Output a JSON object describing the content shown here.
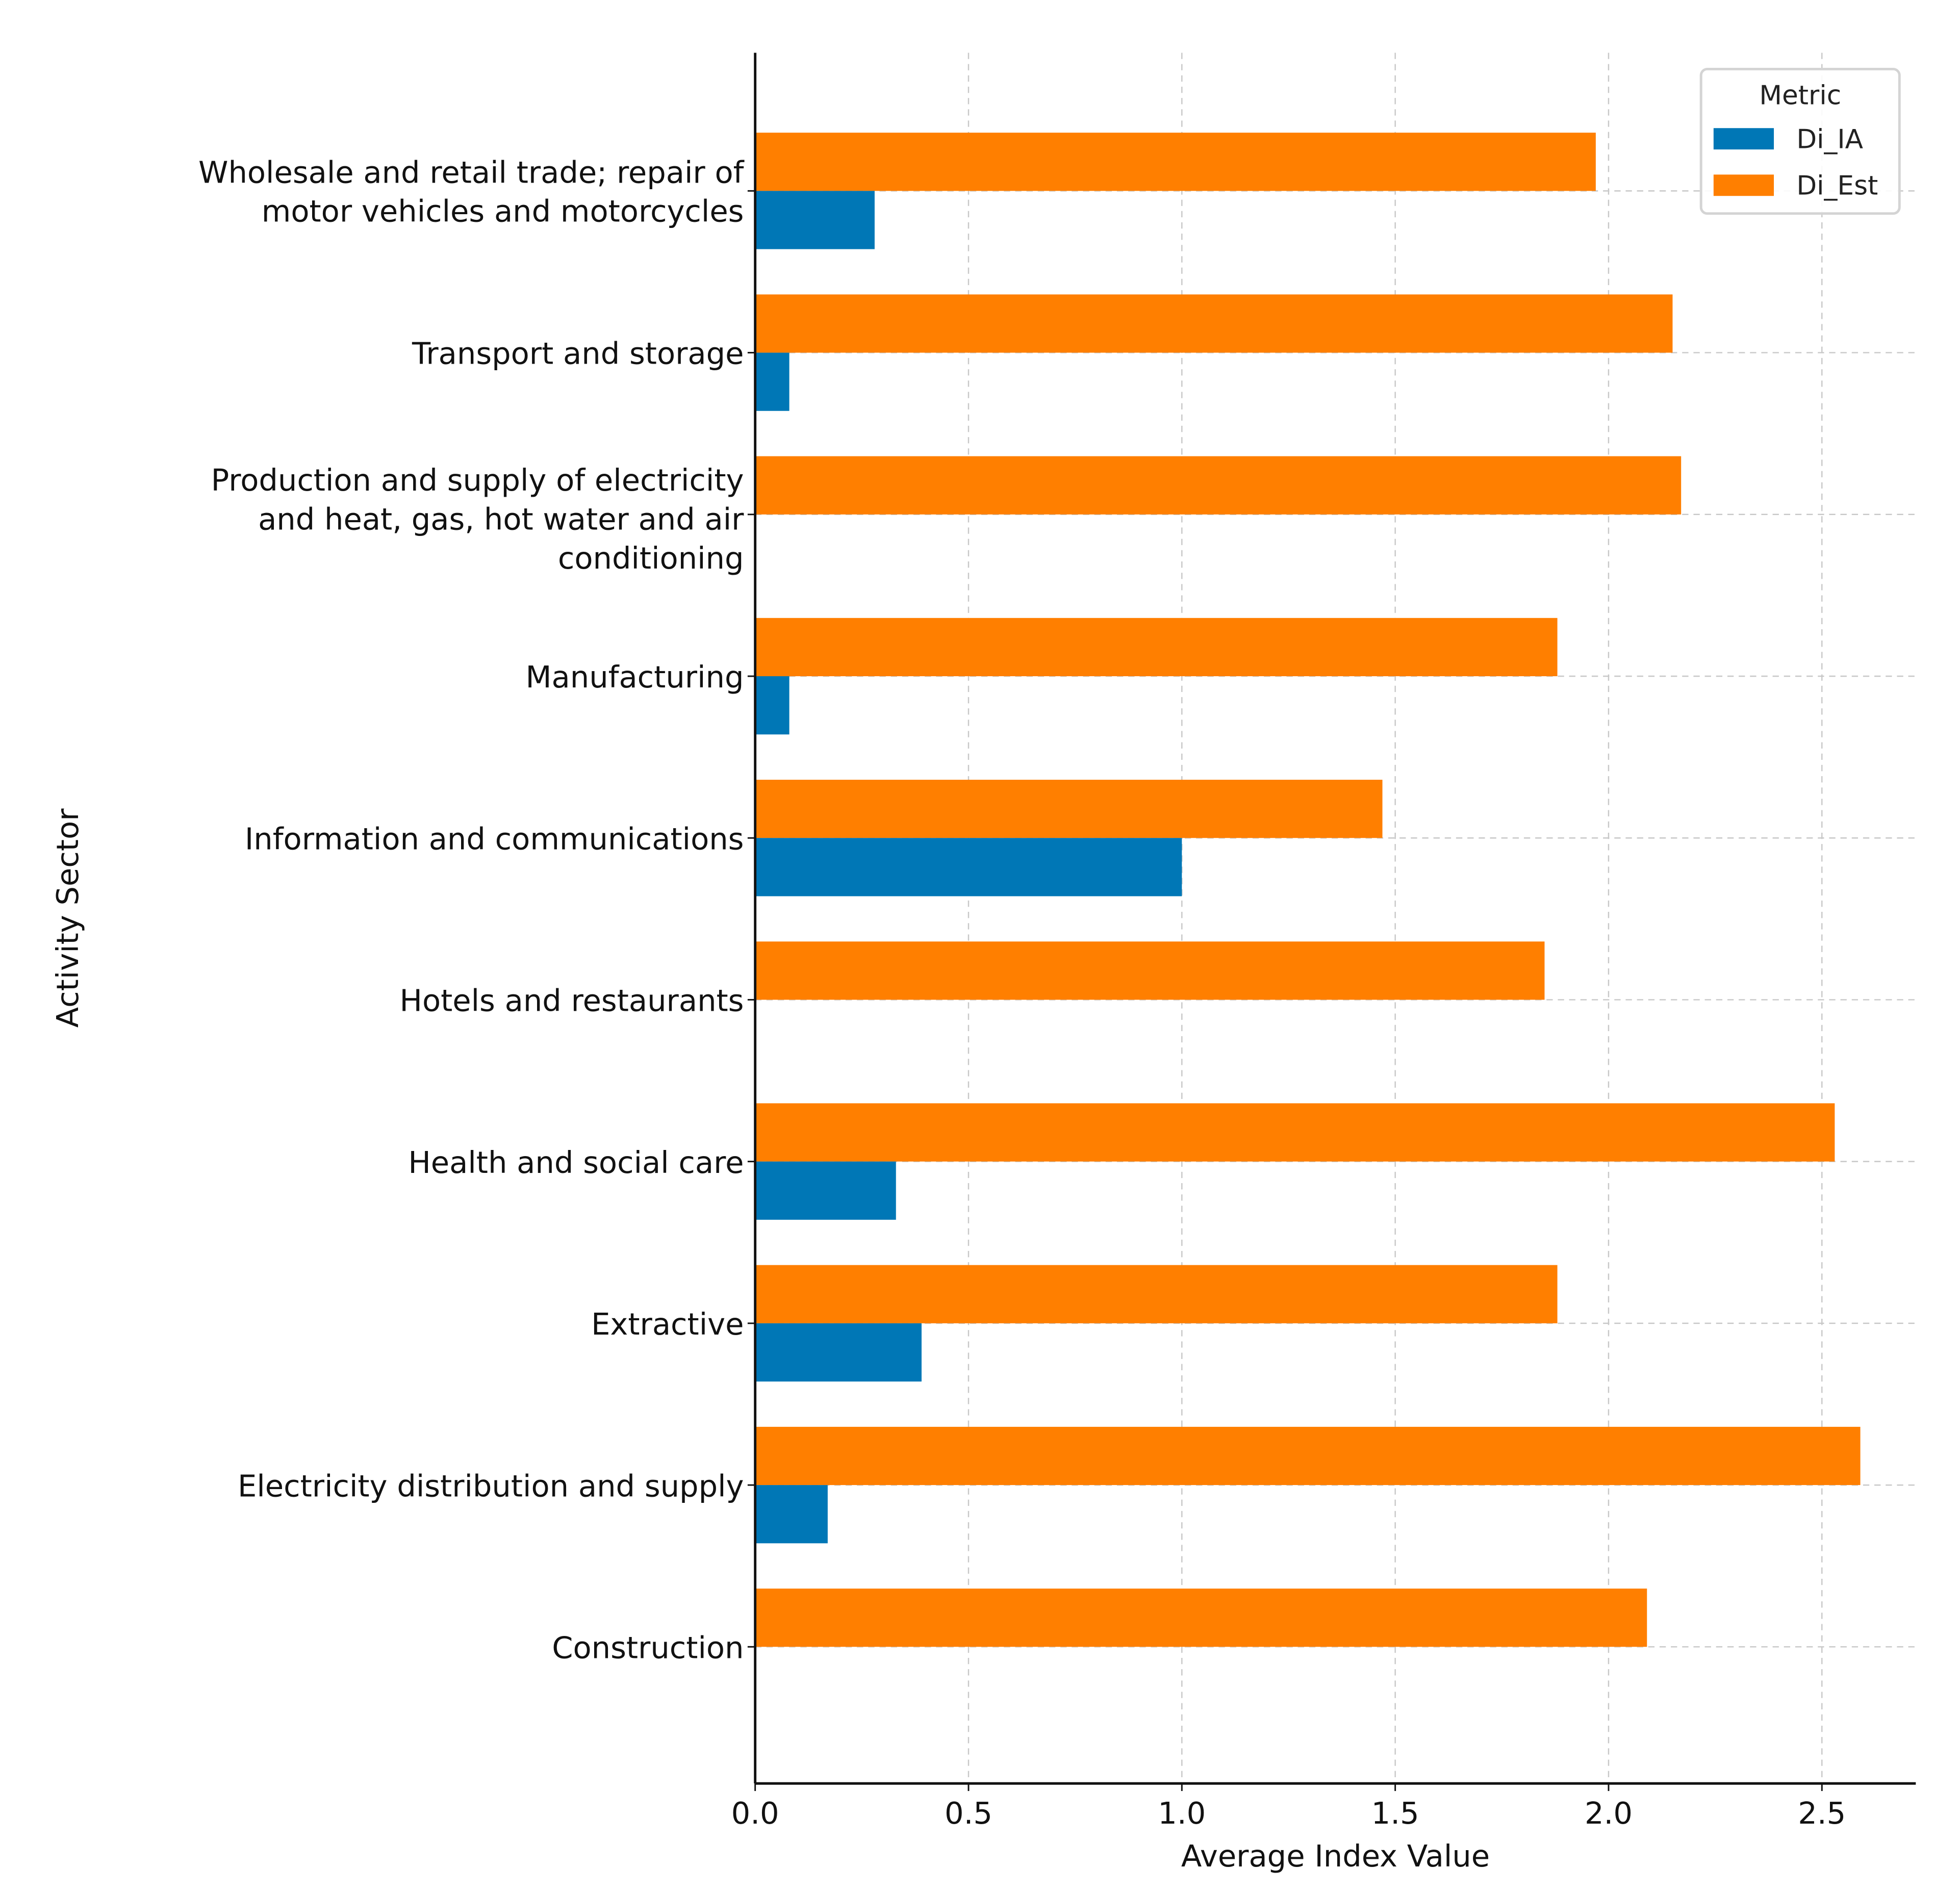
{
  "chart_data": {
    "type": "bar",
    "orientation": "horizontal",
    "title": "",
    "xlabel": "Average Index Value",
    "ylabel": "Activity Sector",
    "xlim": [
      0,
      2.72
    ],
    "xticks": [
      "0.0",
      "0.5",
      "1.0",
      "1.5",
      "2.0",
      "2.5"
    ],
    "grid": true,
    "legend": {
      "title": "Metric",
      "placement": "top-right"
    },
    "categories": [
      [
        "Wholesale and retail trade; repair of",
        "motor vehicles and motorcycles"
      ],
      [
        "Transport and storage"
      ],
      [
        "Production and supply of electricity",
        "and heat, gas, hot water and air",
        "conditioning"
      ],
      [
        "Manufacturing"
      ],
      [
        "Information and communications"
      ],
      [
        "Hotels and restaurants"
      ],
      [
        "Health and social care"
      ],
      [
        "Extractive"
      ],
      [
        "Electricity distribution and supply"
      ],
      [
        "Construction"
      ]
    ],
    "series": [
      {
        "name": "Di_IA",
        "color": "#0077b6",
        "values": [
          0.28,
          0.08,
          0.0,
          0.08,
          1.0,
          0.0,
          0.33,
          0.39,
          0.17,
          0.0
        ]
      },
      {
        "name": "Di_Est",
        "color": "#ff7f00",
        "values": [
          1.97,
          2.15,
          2.17,
          1.88,
          1.47,
          1.85,
          2.53,
          1.88,
          2.59,
          2.09
        ]
      }
    ]
  }
}
